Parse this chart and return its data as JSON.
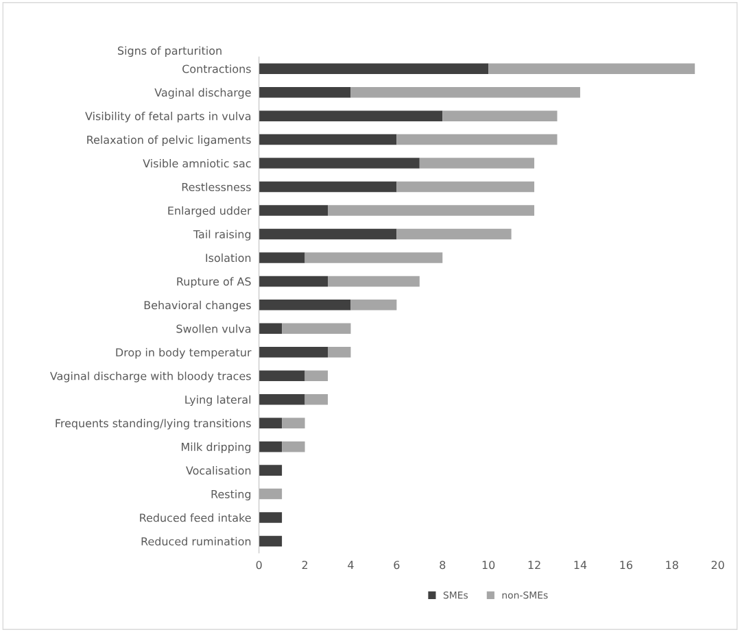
{
  "chart_data": {
    "type": "bar",
    "orientation": "horizontal",
    "stacked": true,
    "ylabel": "Signs of parturition",
    "categories": [
      "Contractions",
      "Vaginal discharge",
      "Visibility of fetal parts in vulva",
      "Relaxation of pelvic ligaments",
      "Visible amniotic sac",
      "Restlessness",
      "Enlarged udder",
      "Tail raising",
      "Isolation",
      "Rupture of AS",
      "Behavioral changes",
      "Swollen vulva",
      "Drop in body temperatur",
      "Vaginal discharge with bloody traces",
      "Lying lateral",
      "Frequents standing/lying transitions",
      "Milk dripping",
      "Vocalisation",
      "Resting",
      "Reduced feed intake",
      "Reduced rumination"
    ],
    "series": [
      {
        "name": "SMEs",
        "color": "#404040",
        "values": [
          10,
          4,
          8,
          6,
          7,
          6,
          3,
          6,
          2,
          3,
          4,
          1,
          3,
          2,
          2,
          1,
          1,
          1,
          0,
          1,
          1
        ]
      },
      {
        "name": "non-SMEs",
        "color": "#a6a6a6",
        "values": [
          9,
          10,
          5,
          7,
          5,
          6,
          9,
          5,
          6,
          4,
          2,
          3,
          1,
          1,
          1,
          1,
          1,
          0,
          1,
          0,
          0
        ]
      }
    ],
    "xlim": [
      0,
      20
    ],
    "xticks": [
      0,
      2,
      4,
      6,
      8,
      10,
      12,
      14,
      16,
      18,
      20
    ],
    "grid": false,
    "legend": "bottom"
  }
}
